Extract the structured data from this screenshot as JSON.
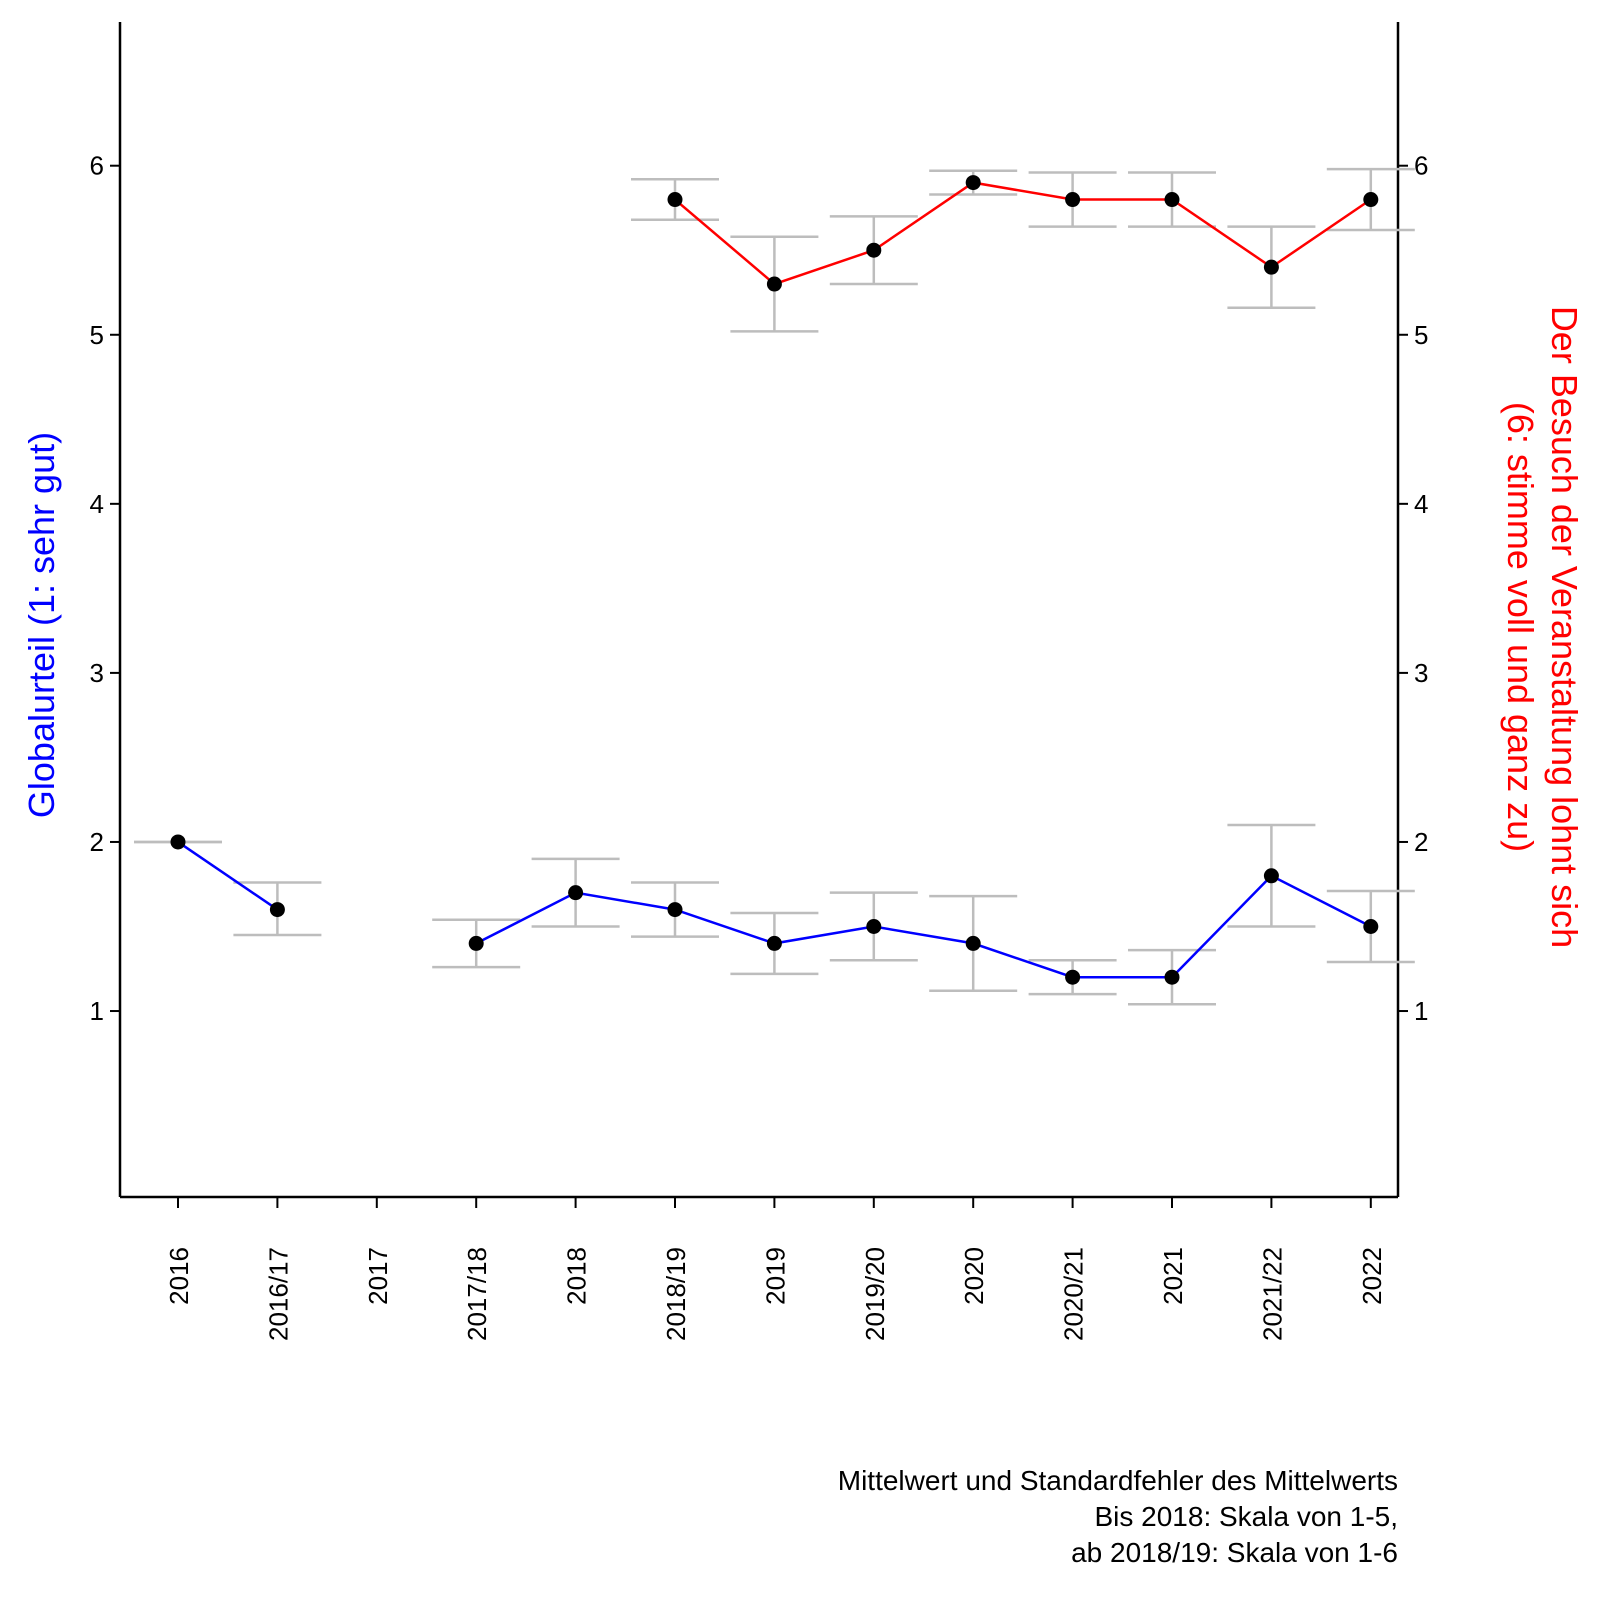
{
  "chart_data": {
    "type": "line",
    "categories": [
      "2016",
      "2016/17",
      "2017",
      "2017/18",
      "2018",
      "2018/19",
      "2019",
      "2019/20",
      "2020",
      "2020/21",
      "2021",
      "2021/22",
      "2022"
    ],
    "y_left": {
      "label": "Globalurteil (1: sehr gut)",
      "ticks": [
        "1",
        "2",
        "3",
        "4",
        "5",
        "6"
      ],
      "range": [
        -0.1,
        6.85
      ]
    },
    "y_right": {
      "label_line1": "Der Besuch der Veranstaltung lohnt sich",
      "label_line2": "(6: stimme voll und ganz zu)",
      "ticks": [
        "1",
        "2",
        "3",
        "4",
        "5",
        "6"
      ],
      "range": [
        -0.1,
        6.85
      ]
    },
    "series": [
      {
        "color": "#0000ff",
        "axis": "left",
        "values": [
          2.0,
          1.6,
          null,
          1.4,
          1.7,
          1.6,
          1.4,
          1.5,
          1.4,
          1.2,
          1.2,
          1.8,
          1.5
        ],
        "error_low": [
          2.0,
          1.45,
          null,
          1.26,
          1.5,
          1.44,
          1.22,
          1.3,
          1.12,
          1.1,
          1.04,
          1.5,
          1.29
        ],
        "error_high": [
          2.0,
          1.76,
          null,
          1.54,
          1.9,
          1.76,
          1.58,
          1.7,
          1.68,
          1.3,
          1.36,
          2.1,
          1.71
        ]
      },
      {
        "color": "#ff0000",
        "axis": "right",
        "values": [
          null,
          null,
          null,
          null,
          null,
          5.8,
          5.3,
          5.5,
          5.9,
          5.8,
          5.8,
          5.4,
          5.8
        ],
        "error_low": [
          null,
          null,
          null,
          null,
          null,
          5.68,
          5.02,
          5.3,
          5.83,
          5.64,
          5.64,
          5.16,
          5.62
        ],
        "error_high": [
          null,
          null,
          null,
          null,
          null,
          5.92,
          5.58,
          5.7,
          5.97,
          5.96,
          5.96,
          5.64,
          5.98
        ]
      }
    ],
    "error_bar_color": "#bdbdbd",
    "point_color": "#000000",
    "grid": false,
    "caption": [
      "Mittelwert und Standardfehler des Mittelwerts",
      "Bis 2018: Skala von 1-5,",
      "ab 2018/19: Skala von 1-6"
    ]
  }
}
